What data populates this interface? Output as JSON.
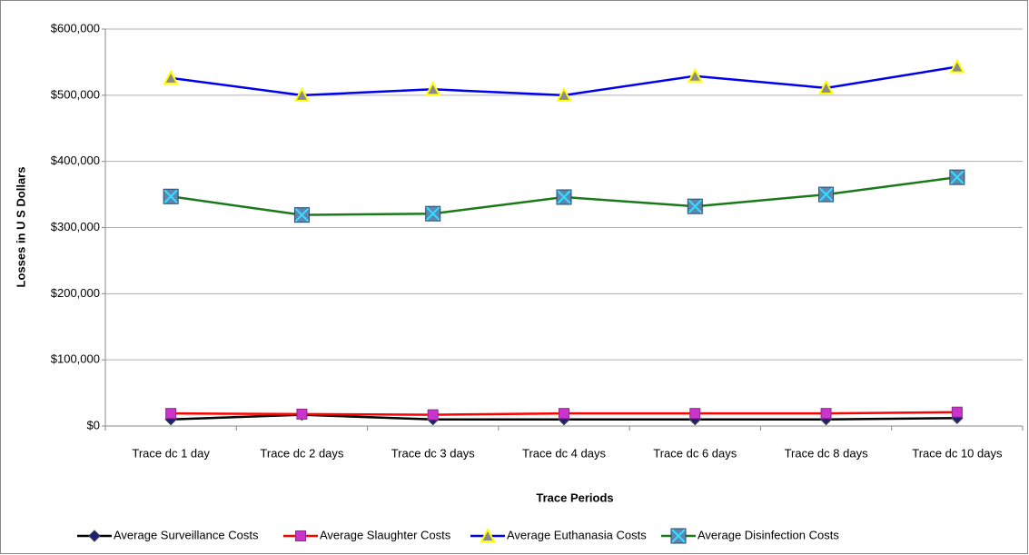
{
  "chart_data": {
    "type": "line",
    "x_label": "Trace Periods",
    "y_label": "Losses in U S Dollars",
    "categories": [
      "Trace dc 1 day",
      "Trace dc 2 days",
      "Trace dc 3 days",
      "Trace dc 4 days",
      "Trace dc 6 days",
      "Trace dc 8 days",
      "Trace dc 10 days"
    ],
    "series": [
      {
        "name": "Average Surveillance Costs",
        "color": "#000000",
        "marker": "diamond",
        "marker_color": "#1f1f7a",
        "values": [
          10000,
          17000,
          10000,
          10000,
          10000,
          10000,
          12000
        ]
      },
      {
        "name": "Average Slaughter Costs",
        "color": "#ff0000",
        "marker": "square",
        "marker_color": "#cc33cc",
        "values": [
          19000,
          18000,
          17000,
          19000,
          19000,
          19000,
          21000
        ]
      },
      {
        "name": "Average Euthanasia Costs",
        "color": "#0000ee",
        "marker": "triangle",
        "marker_color": "#ffff00",
        "values": [
          526000,
          500000,
          509000,
          500000,
          529000,
          511000,
          543000
        ]
      },
      {
        "name": "Average Disinfection Costs",
        "color": "#1a7a1a",
        "marker": "xsquare",
        "marker_color": "#5b87b0",
        "values": [
          347000,
          319000,
          321000,
          346000,
          332000,
          350000,
          376000
        ]
      }
    ],
    "ylim": [
      0,
      600000
    ],
    "yticks": [
      {
        "value": 0,
        "label": "$0"
      },
      {
        "value": 100000,
        "label": "$100,000"
      },
      {
        "value": 200000,
        "label": "$200,000"
      },
      {
        "value": 300000,
        "label": "$300,000"
      },
      {
        "value": 400000,
        "label": "$400,000"
      },
      {
        "value": 500000,
        "label": "$500,000"
      },
      {
        "value": 600000,
        "label": "$600,000"
      }
    ],
    "grid": true,
    "legend": "bottom"
  }
}
